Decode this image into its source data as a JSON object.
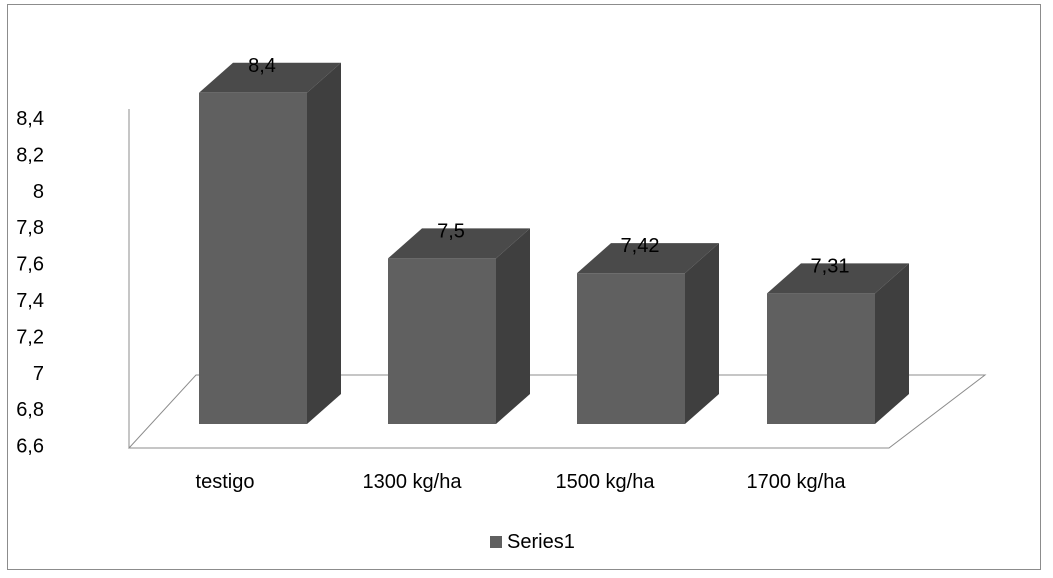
{
  "chart_data": {
    "type": "bar",
    "style": "3d-column",
    "categories": [
      "testigo",
      "1300 kg/ha",
      "1500 kg/ha",
      "1700 kg/ha"
    ],
    "series": [
      {
        "name": "Series1",
        "values": [
          8.4,
          7.5,
          7.42,
          7.31
        ],
        "color": "#606060"
      }
    ],
    "data_labels": [
      "8,4",
      "7,5",
      "7,42",
      "7,31"
    ],
    "y_ticks": [
      6.6,
      6.8,
      7,
      7.2,
      7.4,
      7.6,
      7.8,
      8,
      8.2,
      8.4
    ],
    "y_tick_labels": [
      "6,6",
      "6,8",
      "7",
      "7,2",
      "7,4",
      "7,6",
      "7,8",
      "8",
      "8,2",
      "8,4"
    ],
    "ylim": [
      6.6,
      8.4
    ],
    "title": "",
    "xlabel": "",
    "ylabel": "",
    "grid": false,
    "legend_position": "bottom",
    "colors": {
      "bar_front": "#606060",
      "bar_side": "#3f3f3f",
      "bar_top": "#4a4a4a",
      "axis": "#8c8c8c",
      "frame": "#8c8c8c"
    }
  }
}
